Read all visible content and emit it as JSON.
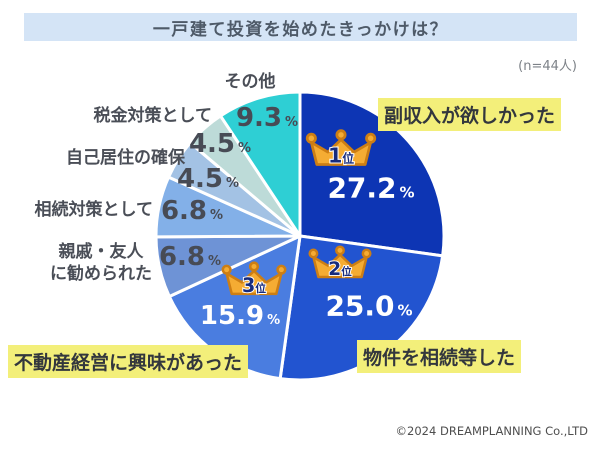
{
  "title": "一戸建て投資を始めたきっかけは？",
  "sample_note": "(n=44人)",
  "footer": "©2024 DREAMPLANNING Co.,LTD",
  "labels": {
    "percent_sign": "%"
  },
  "colors": {
    "banner_bg": "#d4e4f6",
    "highlight_bg": "#f3ef7a",
    "label_text": "#4a4e57",
    "crown_gold": "#f5ac33"
  },
  "chart_data": {
    "type": "pie",
    "title": "一戸建て投資を始めたきっかけは？",
    "n": 44,
    "unit": "%",
    "start_angle": "top",
    "direction": "clockwise",
    "items": [
      {
        "label": "副収入が欲しかった",
        "value": 27.2,
        "value_str": "27.2",
        "color": "#0d35b4",
        "rank": "1位",
        "rank_num": "1",
        "rank_unit": "位",
        "highlighted": true
      },
      {
        "label": "物件を相続等した",
        "value": 25.0,
        "value_str": "25.0",
        "color": "#2254d0",
        "rank": "2位",
        "rank_num": "2",
        "rank_unit": "位",
        "highlighted": true
      },
      {
        "label": "不動産経営に興味があった",
        "value": 15.9,
        "value_str": "15.9",
        "color": "#4a7de0",
        "rank": "3位",
        "rank_num": "3",
        "rank_unit": "位",
        "highlighted": true
      },
      {
        "label": "親戚・友人に勧められた",
        "label_line1": "親戚・友人",
        "label_line2": "に勧められた",
        "value": 6.8,
        "value_str": "6.8",
        "color": "#6e93d6"
      },
      {
        "label": "相続対策として",
        "value": 6.8,
        "value_str": "6.8",
        "color": "#83b0e8"
      },
      {
        "label": "自己居住の確保",
        "value": 4.5,
        "value_str": "4.5",
        "color": "#a3c2e4"
      },
      {
        "label": "税金対策として",
        "value": 4.5,
        "value_str": "4.5",
        "color": "#bddbd8"
      },
      {
        "label": "その他",
        "value": 9.3,
        "value_str": "9.3",
        "color": "#2ecfd4"
      }
    ]
  }
}
